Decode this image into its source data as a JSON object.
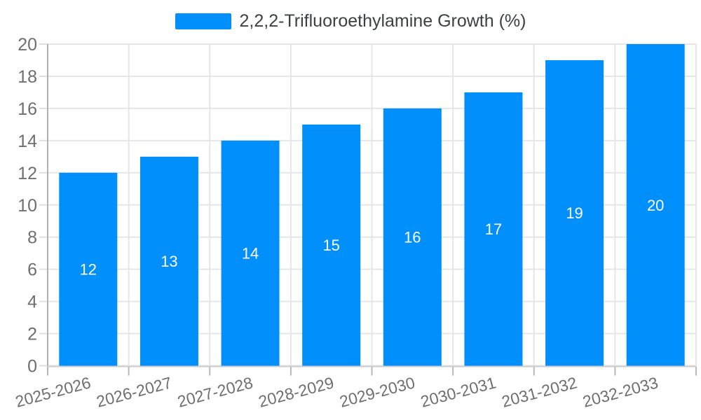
{
  "page": {
    "background_color": "#ffffff"
  },
  "legend": {
    "label": "2,2,2-Trifluoroethylamine Growth (%)",
    "marker_color": "#008FFB",
    "position": "top"
  },
  "chart_data": {
    "type": "bar",
    "title": "2,2,2-Trifluoroethylamine Growth (%)",
    "categories": [
      "2025-2026",
      "2026-2027",
      "2027-2028",
      "2028-2029",
      "2029-2030",
      "2030-2031",
      "2031-2032",
      "2032-2033"
    ],
    "series": [
      {
        "name": "2,2,2-Trifluoroethylamine Growth (%)",
        "values": [
          12,
          13,
          14,
          15,
          16,
          17,
          19,
          20
        ]
      }
    ],
    "data_labels": [
      "12",
      "13",
      "14",
      "15",
      "16",
      "17",
      "19",
      "20"
    ],
    "xlabel": "",
    "ylabel": "",
    "ylim": [
      0,
      20
    ],
    "ytick_step": 2,
    "ytick_labels": [
      "0",
      "2",
      "4",
      "6",
      "8",
      "10",
      "12",
      "14",
      "16",
      "18",
      "20"
    ],
    "x_label_rotation_deg": -15,
    "grid": true,
    "legend_position": "top",
    "colors": {
      "bar": "#008FFB",
      "data_label": "#ffffff",
      "axis_label": "#6f6f6f",
      "grid_line": "#e6e6e6",
      "y_axis_line": "#b1b1b1",
      "x_axis_line": "#cdcdcd",
      "x_tick": "#b9b9b9",
      "y_tick": "#e0e0e0"
    }
  }
}
